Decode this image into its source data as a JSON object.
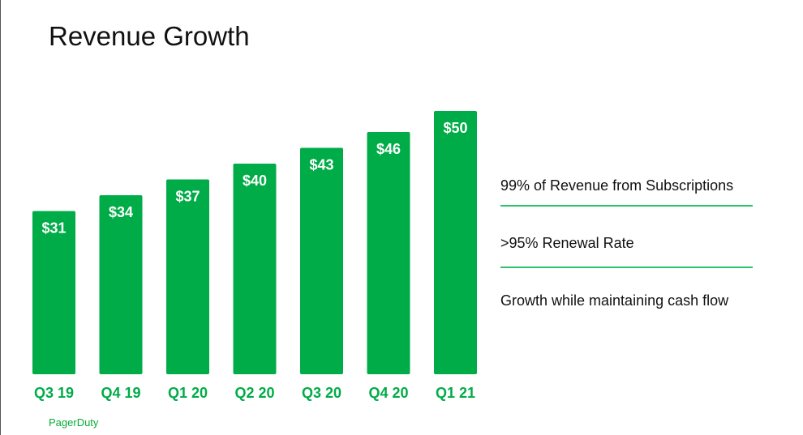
{
  "slide": {
    "title": "Revenue Growth",
    "brand": "PagerDuty"
  },
  "bullets": [
    "99% of Revenue from Subscriptions",
    ">95% Renewal Rate",
    "Growth while maintaining cash flow"
  ],
  "colors": {
    "bar": "#00ac47",
    "bar_label": "#ffffff",
    "category_label": "#00ac47",
    "divider": "#2ec46a"
  },
  "chart_data": {
    "type": "bar",
    "title": "",
    "xlabel": "",
    "ylabel": "",
    "categories": [
      "Q3 19",
      "Q4 19",
      "Q1 20",
      "Q2 20",
      "Q3 20",
      "Q4 20",
      "Q1 21"
    ],
    "values": [
      31,
      34,
      37,
      40,
      43,
      46,
      50
    ],
    "data_labels": [
      "$31",
      "$34",
      "$37",
      "$40",
      "$43",
      "$46",
      "$50"
    ],
    "ylim": [
      0,
      50
    ],
    "grid": false,
    "legend": "none"
  }
}
